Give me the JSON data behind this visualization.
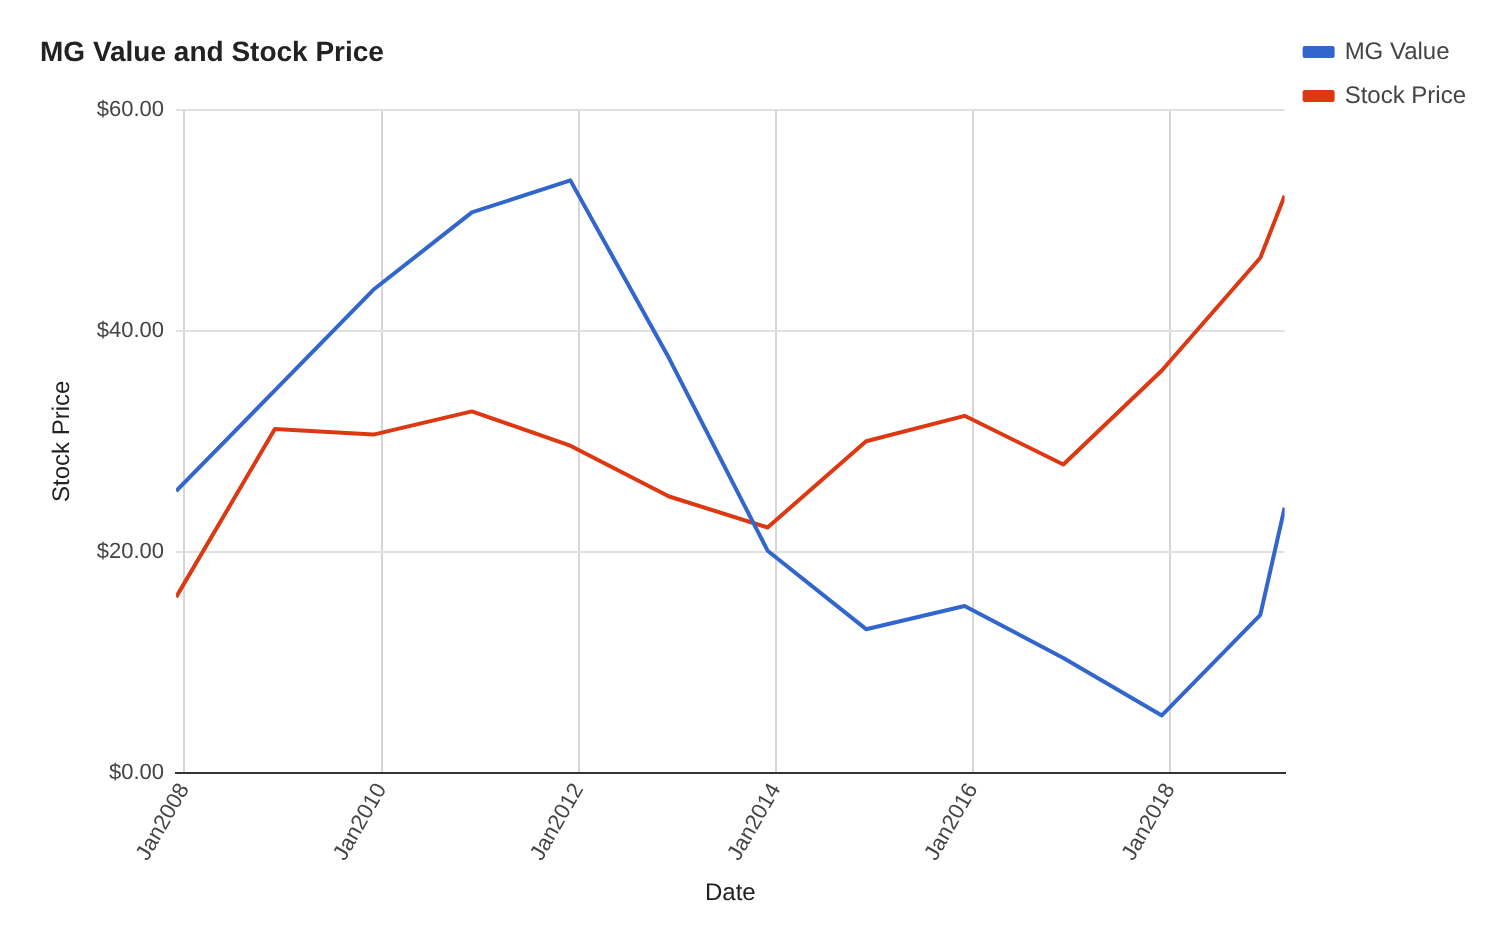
{
  "chart_data": {
    "type": "line",
    "title": "MG Value and Stock Price",
    "xlabel": "Date",
    "ylabel": "Stock Price",
    "x": [
      "2007-12",
      "2008-12",
      "2009-12",
      "2010-12",
      "2011-12",
      "2012-12",
      "2013-12",
      "2014-12",
      "2015-12",
      "2016-12",
      "2017-12",
      "2018-12",
      "2019-03"
    ],
    "series": [
      {
        "name": "MG Value",
        "color": "#3366cc",
        "values": [
          25.5,
          34.6,
          43.7,
          50.7,
          53.6,
          37.5,
          20.1,
          13.0,
          15.1,
          10.4,
          5.2,
          14.3,
          24.0
        ]
      },
      {
        "name": "Stock Price",
        "color": "#dc3912",
        "values": [
          15.9,
          31.1,
          30.6,
          32.7,
          29.6,
          25.0,
          22.2,
          30.0,
          32.3,
          27.9,
          36.4,
          46.6,
          52.2
        ]
      }
    ],
    "xlim": [
      "2007-12",
      "2019-03"
    ],
    "xticks": [
      {
        "value": "2008-01",
        "label": "Jan2008"
      },
      {
        "value": "2010-01",
        "label": "Jan2010"
      },
      {
        "value": "2012-01",
        "label": "Jan2012"
      },
      {
        "value": "2014-01",
        "label": "Jan2014"
      },
      {
        "value": "2016-01",
        "label": "Jan2016"
      },
      {
        "value": "2018-01",
        "label": "Jan2018"
      }
    ],
    "ylim": [
      0,
      60
    ],
    "yticks": [
      {
        "value": 0,
        "label": "$0.00"
      },
      {
        "value": 20,
        "label": "$20.00"
      },
      {
        "value": 40,
        "label": "$40.00"
      },
      {
        "value": 60,
        "label": "$60.00"
      }
    ],
    "grid": true,
    "legend": "top right",
    "marker": "none",
    "line_style": "solid"
  }
}
